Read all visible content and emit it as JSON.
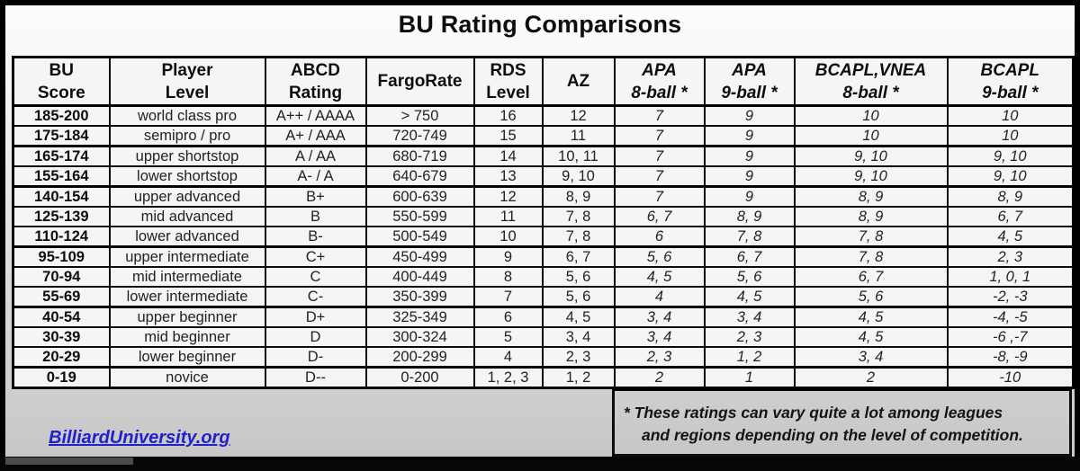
{
  "title": "BU Rating Comparisons",
  "table": {
    "columns": [
      {
        "lines": [
          "BU",
          "Score"
        ],
        "italic": false
      },
      {
        "lines": [
          "Player",
          "Level"
        ],
        "italic": false
      },
      {
        "lines": [
          "ABCD",
          "Rating"
        ],
        "italic": false
      },
      {
        "lines": [
          "FargoRate"
        ],
        "italic": false
      },
      {
        "lines": [
          "RDS",
          "Level"
        ],
        "italic": false
      },
      {
        "lines": [
          "AZ"
        ],
        "italic": false
      },
      {
        "lines": [
          "APA",
          "8-ball *"
        ],
        "italic": true
      },
      {
        "lines": [
          "APA",
          "9-ball *"
        ],
        "italic": true
      },
      {
        "lines": [
          "BCAPL,VNEA",
          "8-ball *"
        ],
        "italic": true
      },
      {
        "lines": [
          "BCAPL",
          "9-ball *"
        ],
        "italic": true
      }
    ],
    "rows": [
      [
        "185-200",
        "world class pro",
        "A++ / AAAA",
        "> 750",
        "16",
        "12",
        "7",
        "9",
        "10",
        "10"
      ],
      [
        "175-184",
        "semipro / pro",
        "A+ / AAA",
        "720-749",
        "15",
        "11",
        "7",
        "9",
        "10",
        "10"
      ],
      [
        "165-174",
        "upper shortstop",
        "A / AA",
        "680-719",
        "14",
        "10, 11",
        "7",
        "9",
        "9, 10",
        "9, 10"
      ],
      [
        "155-164",
        "lower shortstop",
        "A- / A",
        "640-679",
        "13",
        "9, 10",
        "7",
        "9",
        "9, 10",
        "9, 10"
      ],
      [
        "140-154",
        "upper advanced",
        "B+",
        "600-639",
        "12",
        "8, 9",
        "7",
        "9",
        "8, 9",
        "8, 9"
      ],
      [
        "125-139",
        "mid advanced",
        "B",
        "550-599",
        "11",
        "7, 8",
        "6, 7",
        "8, 9",
        "8, 9",
        "6, 7"
      ],
      [
        "110-124",
        "lower advanced",
        "B-",
        "500-549",
        "10",
        "7, 8",
        "6",
        "7, 8",
        "7, 8",
        "4, 5"
      ],
      [
        "95-109",
        "upper intermediate",
        "C+",
        "450-499",
        "9",
        "6, 7",
        "5, 6",
        "6, 7",
        "7, 8",
        "2, 3"
      ],
      [
        "70-94",
        "mid intermediate",
        "C",
        "400-449",
        "8",
        "5, 6",
        "4, 5",
        "5, 6",
        "6, 7",
        "1, 0, 1"
      ],
      [
        "55-69",
        "lower intermediate",
        "C-",
        "350-399",
        "7",
        "5, 6",
        "4",
        "4, 5",
        "5, 6",
        "-2, -3"
      ],
      [
        "40-54",
        "upper beginner",
        "D+",
        "325-349",
        "6",
        "4, 5",
        "3, 4",
        "3, 4",
        "4, 5",
        "-4, -5"
      ],
      [
        "30-39",
        "mid beginner",
        "D",
        "300-324",
        "5",
        "3, 4",
        "3, 4",
        "2, 3",
        "4, 5",
        "-6 ,-7"
      ],
      [
        "20-29",
        "lower beginner",
        "D-",
        "200-299",
        "4",
        "2, 3",
        "2, 3",
        "1, 2",
        "3, 4",
        "-8, -9"
      ],
      [
        "0-19",
        "novice",
        "D--",
        "0-200",
        "1, 2, 3",
        "1, 2",
        "2",
        "1",
        "2",
        "-10"
      ]
    ],
    "group_end_rows": [
      1,
      3,
      6,
      9,
      12
    ],
    "bold_col": 0,
    "italic_cols": [
      6,
      7,
      8,
      9
    ]
  },
  "footnote": {
    "line1": "* These ratings can vary quite a lot among leagues",
    "line2": "and regions depending on the level of competition."
  },
  "link": {
    "label": "BilliardUniversity.org"
  },
  "colors": {
    "link": "#2121cc",
    "border": "#000000",
    "cell_bg": "#f5f5f5",
    "player_bar": "#060606",
    "player_progress": "#4c4c4c"
  }
}
